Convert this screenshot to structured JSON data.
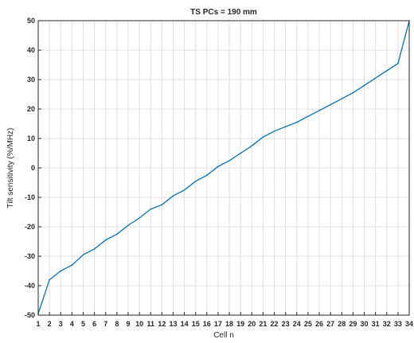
{
  "chart_data": {
    "type": "line",
    "title": "TS PCs = 190 mm",
    "xlabel": "Cell n",
    "ylabel": "Tilt sensitivity (%/MHz)",
    "xlim": [
      1,
      34
    ],
    "ylim": [
      -50,
      50
    ],
    "x_ticks": [
      1,
      2,
      3,
      4,
      5,
      6,
      7,
      8,
      9,
      10,
      11,
      12,
      13,
      14,
      15,
      16,
      17,
      18,
      19,
      20,
      21,
      22,
      23,
      24,
      25,
      26,
      27,
      28,
      29,
      30,
      31,
      32,
      33,
      34
    ],
    "y_ticks": [
      -50,
      -40,
      -30,
      -20,
      -10,
      0,
      10,
      20,
      30,
      40,
      50
    ],
    "grid": true,
    "series": [
      {
        "color": "#0072bd",
        "x": [
          1,
          2,
          3,
          4,
          5,
          6,
          7,
          8,
          9,
          10,
          11,
          12,
          13,
          14,
          15,
          16,
          17,
          18,
          19,
          20,
          21,
          22,
          23,
          24,
          25,
          26,
          27,
          28,
          29,
          30,
          31,
          32,
          33,
          34
        ],
        "y": [
          -49.5,
          -38,
          -35,
          -33,
          -29.5,
          -27.5,
          -24.5,
          -22.5,
          -19.5,
          -17,
          -14,
          -12.5,
          -9.5,
          -7.5,
          -4.5,
          -2.5,
          0.5,
          2.5,
          5,
          7.5,
          10.5,
          12.5,
          14,
          15.5,
          17.5,
          19.5,
          21.5,
          23.5,
          25.5,
          28,
          30.5,
          33,
          35.5,
          50
        ]
      }
    ]
  }
}
